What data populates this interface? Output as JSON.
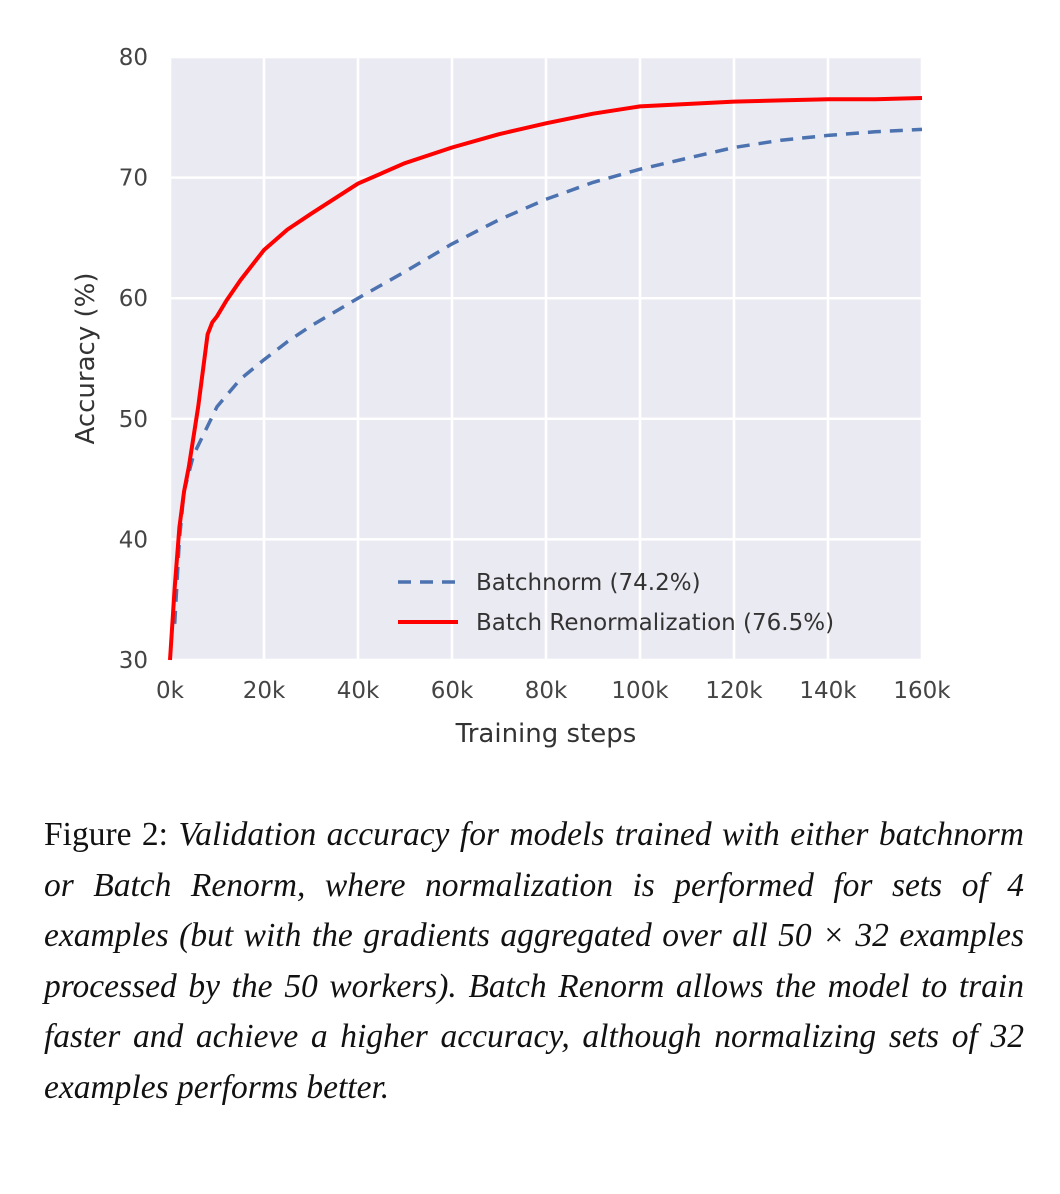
{
  "chart_data": {
    "type": "line",
    "xlabel": "Training steps",
    "ylabel": "Accuracy (%)",
    "xlim": [
      0,
      160000
    ],
    "ylim": [
      30,
      80
    ],
    "x_ticks": [
      0,
      20000,
      40000,
      60000,
      80000,
      100000,
      120000,
      140000,
      160000
    ],
    "x_tick_labels": [
      "0k",
      "20k",
      "40k",
      "60k",
      "80k",
      "100k",
      "120k",
      "140k",
      "160k"
    ],
    "y_ticks": [
      30,
      40,
      50,
      60,
      70,
      80
    ],
    "y_tick_labels": [
      "30",
      "40",
      "50",
      "60",
      "70",
      "80"
    ],
    "grid": true,
    "legend_position": "bottom-right",
    "series": [
      {
        "name": "Batchnorm (74.2%)",
        "color": "#4c72b0",
        "style": "dashed",
        "x": [
          1000,
          2000,
          3000,
          5000,
          7500,
          10000,
          15000,
          20000,
          25000,
          30000,
          40000,
          50000,
          60000,
          70000,
          80000,
          90000,
          100000,
          110000,
          120000,
          130000,
          140000,
          150000,
          160000
        ],
        "y": [
          33.0,
          40.0,
          44.0,
          47.0,
          49.0,
          51.0,
          53.3,
          54.9,
          56.4,
          57.7,
          60.0,
          62.2,
          64.5,
          66.5,
          68.2,
          69.6,
          70.7,
          71.6,
          72.5,
          73.1,
          73.5,
          73.8,
          74.0
        ]
      },
      {
        "name": "Batch Renormalization (76.5%)",
        "color": "#ff0000",
        "style": "solid",
        "x": [
          0,
          1000,
          2000,
          3000,
          4000,
          5000,
          6000,
          7000,
          8000,
          9000,
          10000,
          12000,
          15000,
          20000,
          25000,
          30000,
          40000,
          50000,
          60000,
          70000,
          80000,
          90000,
          100000,
          110000,
          120000,
          130000,
          140000,
          150000,
          160000
        ],
        "y": [
          30.0,
          36.0,
          41.0,
          44.0,
          46.0,
          48.5,
          51.0,
          54.0,
          57.0,
          58.0,
          58.5,
          59.8,
          61.5,
          64.0,
          65.7,
          67.0,
          69.5,
          71.2,
          72.5,
          73.6,
          74.5,
          75.3,
          75.9,
          76.1,
          76.3,
          76.4,
          76.5,
          76.5,
          76.6
        ]
      }
    ]
  },
  "caption": {
    "label": "Figure 2:",
    "text": "Validation accuracy for models trained with either batchnorm or Batch Renorm, where normalization is performed for sets of 4 examples (but with the gradients aggregated over all 50 × 32 examples processed by the 50 workers). Batch Renorm allows the model to train faster and achieve a higher accuracy, although normalizing sets of 32 examples performs better."
  }
}
